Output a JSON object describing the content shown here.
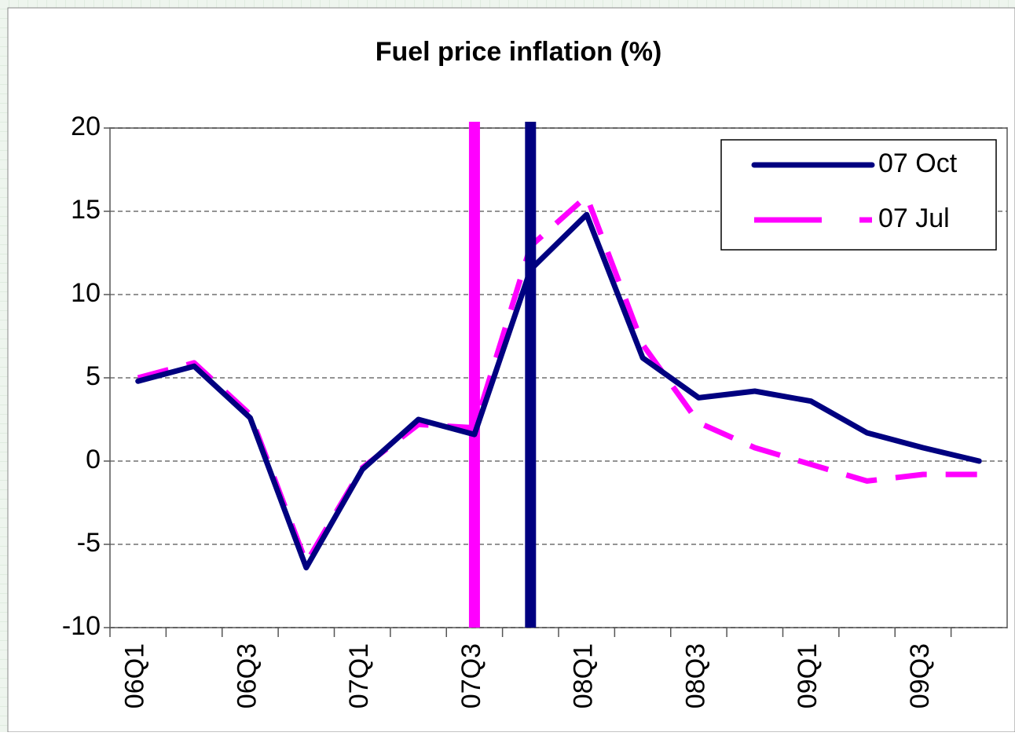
{
  "chart_data": {
    "type": "line",
    "title": "Fuel price inflation (%)",
    "categories": [
      "06Q1",
      null,
      "06Q3",
      null,
      "07Q1",
      null,
      "07Q3",
      null,
      "08Q1",
      null,
      "08Q3",
      null,
      "09Q1",
      null,
      "09Q3",
      null
    ],
    "series": [
      {
        "name": "07 Oct",
        "color": "#000080",
        "dashed": false,
        "vline_index": 7,
        "values": [
          4.8,
          5.7,
          2.6,
          -6.4,
          -0.5,
          2.5,
          1.6,
          11.5,
          14.8,
          6.2,
          3.8,
          4.2,
          3.6,
          1.7,
          0.8,
          0.0
        ]
      },
      {
        "name": "07 Jul",
        "color": "#ff00ff",
        "dashed": true,
        "vline_index": 6,
        "values": [
          5.0,
          5.9,
          2.8,
          -6.1,
          -0.4,
          2.2,
          2.0,
          12.9,
          15.9,
          7.0,
          2.3,
          0.8,
          -0.2,
          -1.2,
          -0.8,
          -0.8
        ]
      }
    ],
    "ylim": [
      -10,
      20
    ],
    "yticks": [
      -10,
      -5,
      0,
      5,
      10,
      15,
      20
    ],
    "grid": true,
    "legend": "upper right"
  }
}
